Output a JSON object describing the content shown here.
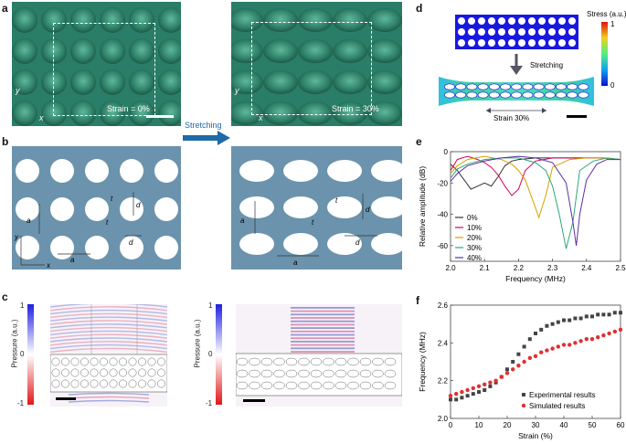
{
  "panels": {
    "a": "a",
    "b": "b",
    "c": "c",
    "d": "d",
    "e": "e",
    "f": "f"
  },
  "panel_a": {
    "strain_left": "Strain = 0%",
    "strain_right": "Strain = 30%",
    "axis_y": "y",
    "axis_x": "x",
    "stretching": "Stretching"
  },
  "panel_b": {
    "labels_left": {
      "ay": "a",
      "ax": "a",
      "tx": "t",
      "ty": "t",
      "dy": "d",
      "dx": "d",
      "y": "y",
      "x": "x"
    },
    "labels_right": {
      "ay": "a",
      "ax": "a",
      "tx": "t",
      "ty": "t",
      "dy": "d",
      "dx": "d"
    }
  },
  "panel_c": {
    "colorbar_label": "Pressure (a.u.)",
    "ticks": [
      "1",
      "0",
      "-1"
    ]
  },
  "panel_d": {
    "stress_label": "Stress (a.u.)",
    "stress_max": "1",
    "stress_min": "0",
    "stretching": "Stretching",
    "strain": "Strain 30%",
    "colors": {
      "low": "#1818e0",
      "high": "#e02010"
    }
  },
  "chart_data": [
    {
      "type": "line",
      "id": "e",
      "xlabel": "Frequency (MHz)",
      "ylabel": "Relative amplitude (dB)",
      "xlim": [
        2.0,
        2.5
      ],
      "ylim": [
        -70,
        0
      ],
      "xticks": [
        "2.0",
        "2.1",
        "2.2",
        "2.3",
        "2.4",
        "2.5"
      ],
      "yticks": [
        "0",
        "-20",
        "-40",
        "-60"
      ],
      "series": [
        {
          "name": "0%",
          "color": "#333333",
          "x": [
            2.0,
            2.02,
            2.04,
            2.06,
            2.08,
            2.1,
            2.12,
            2.14,
            2.16,
            2.18,
            2.2,
            2.25,
            2.3,
            2.35,
            2.4,
            2.45,
            2.5
          ],
          "y": [
            -8,
            -12,
            -18,
            -24,
            -22,
            -20,
            -22,
            -16,
            -9,
            -6,
            -5,
            -4,
            -4,
            -4,
            -4,
            -4,
            -5
          ]
        },
        {
          "name": "10%",
          "color": "#d4005a",
          "x": [
            2.0,
            2.02,
            2.05,
            2.08,
            2.1,
            2.12,
            2.14,
            2.16,
            2.18,
            2.2,
            2.22,
            2.25,
            2.3,
            2.35,
            2.4,
            2.45,
            2.5
          ],
          "y": [
            -12,
            -5,
            -3,
            -5,
            -7,
            -10,
            -15,
            -22,
            -28,
            -24,
            -12,
            -6,
            -4,
            -4,
            -4,
            -4,
            -5
          ]
        },
        {
          "name": "20%",
          "color": "#d8a000",
          "x": [
            2.0,
            2.02,
            2.05,
            2.1,
            2.15,
            2.18,
            2.2,
            2.22,
            2.24,
            2.26,
            2.28,
            2.3,
            2.35,
            2.4,
            2.45,
            2.5
          ],
          "y": [
            -14,
            -9,
            -5,
            -3,
            -5,
            -8,
            -12,
            -18,
            -30,
            -42,
            -28,
            -10,
            -5,
            -4,
            -4,
            -5
          ]
        },
        {
          "name": "30%",
          "color": "#2ca87a",
          "x": [
            2.0,
            2.02,
            2.05,
            2.1,
            2.15,
            2.2,
            2.25,
            2.28,
            2.3,
            2.32,
            2.34,
            2.36,
            2.38,
            2.42,
            2.46,
            2.5
          ],
          "y": [
            -17,
            -11,
            -8,
            -5,
            -4,
            -4,
            -7,
            -12,
            -22,
            -40,
            -62,
            -45,
            -12,
            -6,
            -4,
            -5
          ]
        },
        {
          "name": "40%",
          "color": "#5a2ea6",
          "x": [
            2.0,
            2.02,
            2.05,
            2.1,
            2.15,
            2.2,
            2.25,
            2.3,
            2.34,
            2.36,
            2.37,
            2.38,
            2.4,
            2.43,
            2.46,
            2.5
          ],
          "y": [
            -19,
            -14,
            -9,
            -6,
            -4,
            -3,
            -4,
            -7,
            -20,
            -45,
            -60,
            -40,
            -18,
            -8,
            -5,
            -5
          ]
        }
      ]
    },
    {
      "type": "scatter",
      "id": "f",
      "xlabel": "Strain (%)",
      "ylabel": "Frequency (MHz)",
      "xlim": [
        0,
        60
      ],
      "ylim": [
        2.0,
        2.6
      ],
      "xticks": [
        "0",
        "10",
        "20",
        "30",
        "40",
        "50",
        "60"
      ],
      "yticks": [
        "2.0",
        "2.2",
        "2.4",
        "2.6"
      ],
      "series": [
        {
          "name": "Experimental results",
          "color": "#444444",
          "marker": "square",
          "x": [
            0,
            2,
            4,
            6,
            8,
            10,
            12,
            14,
            16,
            18,
            20,
            22,
            24,
            26,
            28,
            30,
            32,
            34,
            36,
            38,
            40,
            42,
            44,
            46,
            48,
            50,
            52,
            54,
            56,
            58,
            60
          ],
          "y": [
            2.1,
            2.1,
            2.11,
            2.12,
            2.13,
            2.14,
            2.15,
            2.17,
            2.19,
            2.22,
            2.26,
            2.3,
            2.34,
            2.38,
            2.42,
            2.45,
            2.47,
            2.49,
            2.5,
            2.51,
            2.52,
            2.52,
            2.53,
            2.53,
            2.54,
            2.54,
            2.55,
            2.55,
            2.55,
            2.56,
            2.56
          ]
        },
        {
          "name": "Simulated results",
          "color": "#e03030",
          "marker": "circle",
          "x": [
            0,
            2,
            4,
            6,
            8,
            10,
            12,
            14,
            16,
            18,
            20,
            22,
            24,
            26,
            28,
            30,
            32,
            34,
            36,
            38,
            40,
            42,
            44,
            46,
            48,
            50,
            52,
            54,
            56,
            58,
            60
          ],
          "y": [
            2.12,
            2.13,
            2.14,
            2.15,
            2.16,
            2.17,
            2.18,
            2.19,
            2.2,
            2.22,
            2.24,
            2.26,
            2.28,
            2.3,
            2.32,
            2.33,
            2.35,
            2.36,
            2.37,
            2.38,
            2.39,
            2.39,
            2.4,
            2.41,
            2.42,
            2.42,
            2.43,
            2.44,
            2.45,
            2.46,
            2.47
          ]
        }
      ]
    }
  ]
}
